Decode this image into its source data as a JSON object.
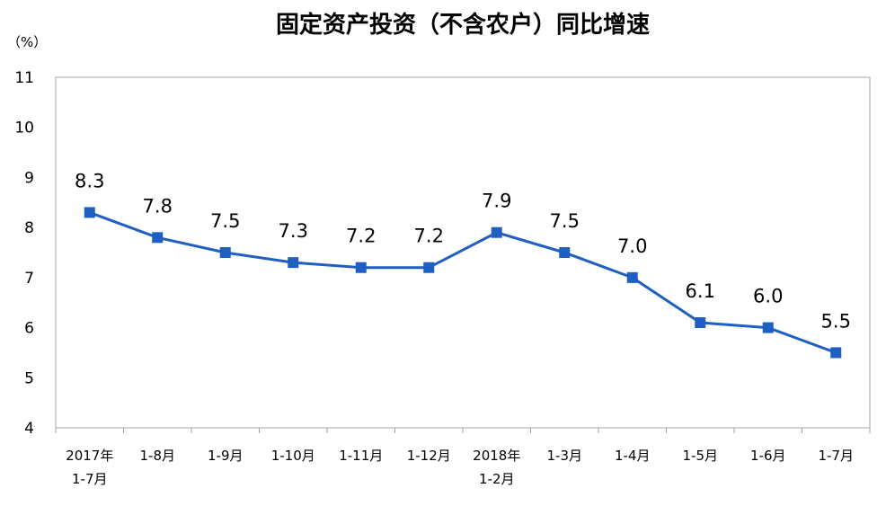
{
  "chart_data": {
    "type": "line",
    "title": "固定资产投资（不含农户）同比增速",
    "unit_label": "（%）",
    "xlabel": "",
    "ylabel": "",
    "ylim": [
      4,
      11
    ],
    "y_ticks": [
      "11",
      "10",
      "9",
      "8",
      "7",
      "6",
      "5",
      "4"
    ],
    "categories": [
      [
        "2017年",
        "1-7月"
      ],
      [
        "1-8月"
      ],
      [
        "1-9月"
      ],
      [
        "1-10月"
      ],
      [
        "1-11月"
      ],
      [
        "1-12月"
      ],
      [
        "2018年",
        "1-2月"
      ],
      [
        "1-3月"
      ],
      [
        "1-4月"
      ],
      [
        "1-5月"
      ],
      [
        "1-6月"
      ],
      [
        "1-7月"
      ]
    ],
    "series": [
      {
        "values": [
          8.3,
          7.8,
          7.5,
          7.3,
          7.2,
          7.2,
          7.9,
          7.5,
          7.0,
          6.1,
          6.0,
          5.5
        ],
        "labels": [
          "8.3",
          "7.8",
          "7.5",
          "7.3",
          "7.2",
          "7.2",
          "7.9",
          "7.5",
          "7.0",
          "6.1",
          "6.0",
          "5.5"
        ],
        "color": "#1f5fc2"
      }
    ],
    "grid": false,
    "legend": "none",
    "colors": {
      "line": "#1f5fc2",
      "marker": "#1f5fc2",
      "axis": "#a6a6a6",
      "text": "#000000"
    }
  }
}
